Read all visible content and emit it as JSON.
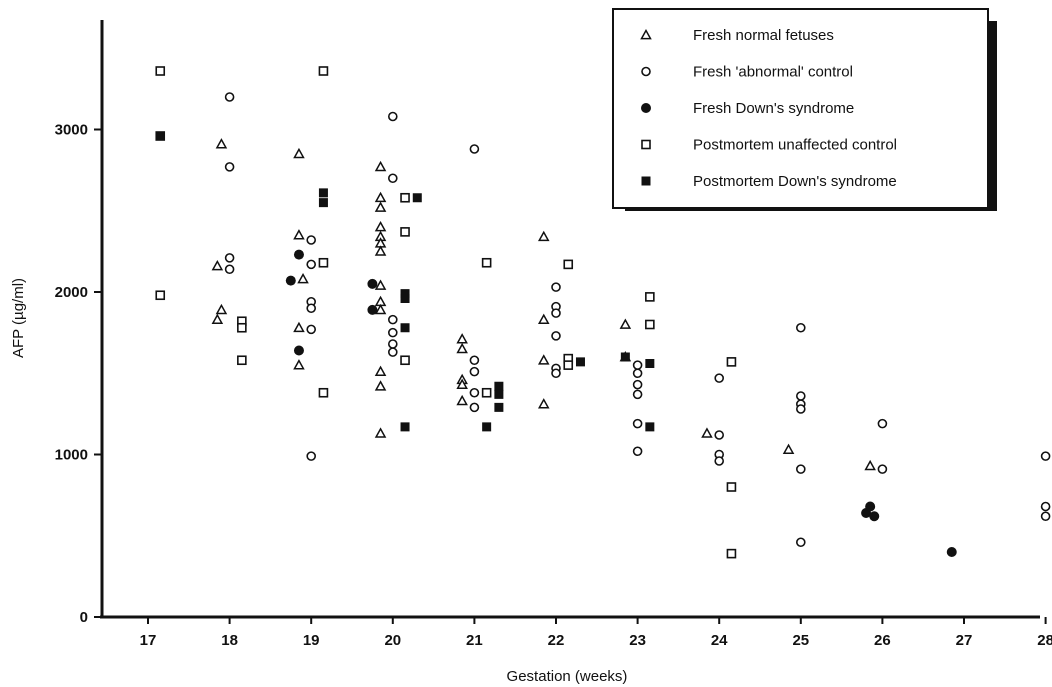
{
  "chart_data": {
    "type": "scatter",
    "title": "",
    "xlabel": "Gestation (weeks)",
    "ylabel": "AFP (µg/ml)",
    "xlim": [
      16.6,
      28.2
    ],
    "ylim": [
      0,
      3600
    ],
    "xticks": [
      17,
      18,
      19,
      20,
      21,
      22,
      23,
      24,
      25,
      26,
      27,
      28
    ],
    "xtick_labels": [
      "17",
      "18",
      "19",
      "20",
      "21",
      "22",
      "23",
      "24",
      "25",
      "26",
      "27",
      "28"
    ],
    "yticks": [
      0,
      1000,
      2000,
      3000
    ],
    "ytick_labels": [
      "0",
      "1000",
      "2000",
      "3000"
    ],
    "grid": false,
    "legend_position": "top-right",
    "series": [
      {
        "name": "Fresh normal fetuses",
        "marker": "triangle-open",
        "points": [
          [
            17.9,
            2910
          ],
          [
            17.85,
            2160
          ],
          [
            17.9,
            1890
          ],
          [
            17.85,
            1830
          ],
          [
            18.85,
            2850
          ],
          [
            18.85,
            2350
          ],
          [
            18.9,
            2080
          ],
          [
            18.85,
            1780
          ],
          [
            18.85,
            1550
          ],
          [
            19.85,
            2770
          ],
          [
            19.85,
            2580
          ],
          [
            19.85,
            2520
          ],
          [
            19.85,
            2400
          ],
          [
            19.85,
            2340
          ],
          [
            19.85,
            2300
          ],
          [
            19.85,
            2250
          ],
          [
            19.85,
            2040
          ],
          [
            19.85,
            1940
          ],
          [
            19.85,
            1890
          ],
          [
            19.85,
            1510
          ],
          [
            19.85,
            1420
          ],
          [
            19.85,
            1130
          ],
          [
            20.85,
            1710
          ],
          [
            20.85,
            1650
          ],
          [
            20.85,
            1460
          ],
          [
            20.85,
            1430
          ],
          [
            20.85,
            1330
          ],
          [
            21.85,
            2340
          ],
          [
            21.85,
            1830
          ],
          [
            21.85,
            1580
          ],
          [
            21.85,
            1310
          ],
          [
            22.85,
            1800
          ],
          [
            22.85,
            1600
          ],
          [
            23.85,
            1130
          ],
          [
            24.85,
            1030
          ],
          [
            25.85,
            930
          ]
        ]
      },
      {
        "name": "Fresh 'abnormal' control",
        "marker": "circle-open",
        "points": [
          [
            18.0,
            3200
          ],
          [
            18.0,
            2770
          ],
          [
            18.0,
            2210
          ],
          [
            18.0,
            2140
          ],
          [
            19.0,
            2320
          ],
          [
            19.0,
            2170
          ],
          [
            19.0,
            1940
          ],
          [
            19.0,
            1900
          ],
          [
            19.0,
            1770
          ],
          [
            19.0,
            990
          ],
          [
            20.0,
            3080
          ],
          [
            20.0,
            2700
          ],
          [
            20.0,
            1830
          ],
          [
            20.0,
            1750
          ],
          [
            20.0,
            1680
          ],
          [
            20.0,
            1630
          ],
          [
            21.0,
            2880
          ],
          [
            21.0,
            1580
          ],
          [
            21.0,
            1510
          ],
          [
            21.0,
            1380
          ],
          [
            21.0,
            1290
          ],
          [
            22.0,
            2030
          ],
          [
            22.0,
            1910
          ],
          [
            22.0,
            1870
          ],
          [
            22.0,
            1730
          ],
          [
            22.0,
            1530
          ],
          [
            22.0,
            1500
          ],
          [
            23.0,
            1550
          ],
          [
            23.0,
            1500
          ],
          [
            23.0,
            1430
          ],
          [
            23.0,
            1370
          ],
          [
            23.0,
            1190
          ],
          [
            23.0,
            1020
          ],
          [
            24.0,
            1470
          ],
          [
            24.0,
            1120
          ],
          [
            24.0,
            1000
          ],
          [
            24.0,
            960
          ],
          [
            25.0,
            1780
          ],
          [
            25.0,
            1360
          ],
          [
            25.0,
            1310
          ],
          [
            25.0,
            1280
          ],
          [
            25.0,
            910
          ],
          [
            25.0,
            460
          ],
          [
            26.0,
            1190
          ],
          [
            26.0,
            910
          ],
          [
            28.0,
            990
          ],
          [
            28.0,
            680
          ],
          [
            28.0,
            620
          ]
        ]
      },
      {
        "name": "Fresh Down's syndrome",
        "marker": "circle-filled",
        "points": [
          [
            18.85,
            2230
          ],
          [
            18.75,
            2070
          ],
          [
            18.85,
            1640
          ],
          [
            19.75,
            2050
          ],
          [
            19.75,
            1890
          ],
          [
            25.8,
            640
          ],
          [
            25.85,
            680
          ],
          [
            25.9,
            620
          ],
          [
            26.85,
            400
          ]
        ]
      },
      {
        "name": "Postmortem unaffected control",
        "marker": "square-open",
        "points": [
          [
            17.15,
            3360
          ],
          [
            17.15,
            2960
          ],
          [
            17.15,
            1980
          ],
          [
            18.15,
            1820
          ],
          [
            18.15,
            1780
          ],
          [
            18.15,
            1580
          ],
          [
            19.15,
            3360
          ],
          [
            19.15,
            2180
          ],
          [
            19.15,
            1380
          ],
          [
            20.15,
            2580
          ],
          [
            20.15,
            2370
          ],
          [
            20.15,
            1580
          ],
          [
            21.15,
            2180
          ],
          [
            21.15,
            1380
          ],
          [
            22.15,
            2170
          ],
          [
            22.15,
            1590
          ],
          [
            22.15,
            1550
          ],
          [
            23.15,
            1970
          ],
          [
            23.15,
            1800
          ],
          [
            24.15,
            1570
          ],
          [
            24.15,
            800
          ],
          [
            24.15,
            390
          ]
        ]
      },
      {
        "name": "Postmortem Down's syndrome",
        "marker": "square-filled",
        "points": [
          [
            17.15,
            2960
          ],
          [
            19.15,
            2610
          ],
          [
            19.15,
            2550
          ],
          [
            20.15,
            1990
          ],
          [
            20.15,
            1960
          ],
          [
            20.15,
            1780
          ],
          [
            20.15,
            1170
          ],
          [
            20.3,
            2580
          ],
          [
            21.15,
            1170
          ],
          [
            21.3,
            1420
          ],
          [
            21.3,
            1370
          ],
          [
            21.3,
            1290
          ],
          [
            22.3,
            1570
          ],
          [
            22.85,
            1600
          ],
          [
            23.15,
            1560
          ],
          [
            23.15,
            1170
          ]
        ]
      }
    ]
  }
}
